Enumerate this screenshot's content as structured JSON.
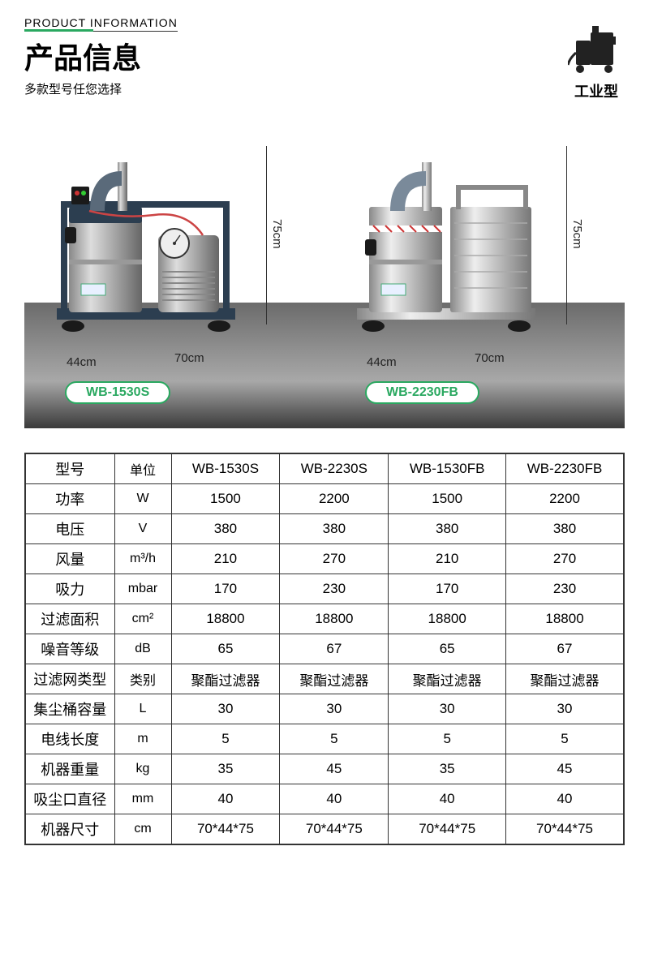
{
  "header": {
    "en": "PRODUCT INFORMATION",
    "cn": "产品信息",
    "sub": "多款型号任您选择",
    "type_label": "工业型"
  },
  "products": [
    {
      "model": "WB-1530S",
      "width": "44cm",
      "depth": "70cm",
      "height": "75cm"
    },
    {
      "model": "WB-2230FB",
      "width": "44cm",
      "depth": "70cm",
      "height": "75cm"
    }
  ],
  "table": {
    "header_label": "型号",
    "header_unit": "单位",
    "models": [
      "WB-1530S",
      "WB-2230S",
      "WB-1530FB",
      "WB-2230FB"
    ],
    "rows": [
      {
        "label": "功率",
        "unit": "W",
        "vals": [
          "1500",
          "2200",
          "1500",
          "2200"
        ]
      },
      {
        "label": "电压",
        "unit": "V",
        "vals": [
          "380",
          "380",
          "380",
          "380"
        ]
      },
      {
        "label": "风量",
        "unit": "m³/h",
        "vals": [
          "210",
          "270",
          "210",
          "270"
        ]
      },
      {
        "label": "吸力",
        "unit": "mbar",
        "vals": [
          "170",
          "230",
          "170",
          "230"
        ]
      },
      {
        "label": "过滤面积",
        "unit": "cm²",
        "vals": [
          "18800",
          "18800",
          "18800",
          "18800"
        ]
      },
      {
        "label": "噪音等级",
        "unit": "dB",
        "vals": [
          "65",
          "67",
          "65",
          "67"
        ]
      },
      {
        "label": "过滤网类型",
        "unit": "类别",
        "vals": [
          "聚酯过滤器",
          "聚酯过滤器",
          "聚酯过滤器",
          "聚酯过滤器"
        ]
      },
      {
        "label": "集尘桶容量",
        "unit": "L",
        "vals": [
          "30",
          "30",
          "30",
          "30"
        ]
      },
      {
        "label": "电线长度",
        "unit": "m",
        "vals": [
          "5",
          "5",
          "5",
          "5"
        ]
      },
      {
        "label": "机器重量",
        "unit": "kg",
        "vals": [
          "35",
          "45",
          "35",
          "45"
        ]
      },
      {
        "label": "吸尘口直径",
        "unit": "mm",
        "vals": [
          "40",
          "40",
          "40",
          "40"
        ]
      },
      {
        "label": "机器尺寸",
        "unit": "cm",
        "vals": [
          "70*44*75",
          "70*44*75",
          "70*44*75",
          "70*44*75"
        ]
      }
    ]
  },
  "colors": {
    "accent": "#2aa860",
    "text": "#222222",
    "border": "#333333"
  }
}
